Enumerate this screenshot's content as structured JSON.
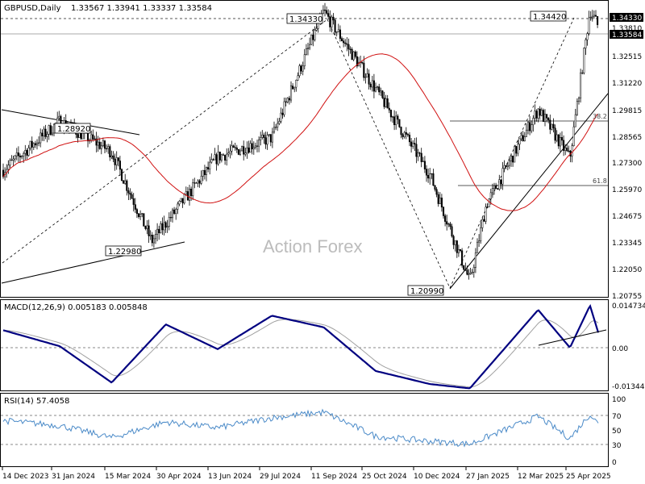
{
  "header": {
    "symbol": "GBPUSD,Daily",
    "ohlc": "1.33567 1.33941 1.33337 1.33584"
  },
  "watermark": "Action Forex",
  "price_axis": {
    "ticks": [
      "1.34330",
      "1.33810",
      "1.32515",
      "1.31220",
      "1.29815",
      "1.28565",
      "1.27300",
      "1.25970",
      "1.24675",
      "1.23345",
      "1.22050",
      "1.20755"
    ],
    "current": "1.33584",
    "marked": "1.34330"
  },
  "price_labels": {
    "high_sep": "1.34330",
    "high_apr": "1.34420",
    "left_high": "1.28920",
    "left_low": "1.22980",
    "low_jan": "1.20990",
    "fib_382": "38.2",
    "fib_618": "61.8"
  },
  "macd": {
    "title": "MACD(12,26,9) 0.005183 0.005848",
    "ticks": [
      "0.014734",
      "0.00",
      "-0.013442"
    ]
  },
  "rsi": {
    "title": "RSI(14) 57.4058",
    "ticks": [
      "100",
      "70",
      "50",
      "30",
      "0"
    ]
  },
  "date_labels": [
    "14 Dec 2023",
    "31 Jan 2024",
    "15 Mar 2024",
    "30 Apr 2024",
    "13 Jun 2024",
    "29 Jul 2024",
    "11 Sep 2024",
    "25 Oct 2024",
    "10 Dec 2024",
    "27 Jan 2025",
    "12 Mar 2025",
    "25 Apr 2025"
  ],
  "colors": {
    "candles": "#000000",
    "ma": "#d01010",
    "macd_line": "#000080",
    "signal_line": "#a0a0a0",
    "rsi_line": "#4a8ac8"
  },
  "chart_data": [
    {
      "type": "line",
      "name": "price",
      "x": [
        "14 Dec 2023",
        "31 Jan 2024",
        "15 Mar 2024",
        "18 Apr 2024",
        "13 Jun 2024",
        "29 Jul 2024",
        "11 Sep 2024",
        "25 Oct 2024",
        "10 Dec 2024",
        "13 Jan 2025",
        "27 Jan 2025",
        "12 Mar 2025",
        "8 Apr 2025",
        "25 Apr 2025",
        "2 May 2025"
      ],
      "values": [
        1.265,
        1.2892,
        1.274,
        1.2298,
        1.2715,
        1.281,
        1.3433,
        1.305,
        1.263,
        1.2099,
        1.248,
        1.295,
        1.271,
        1.3442,
        1.3358
      ],
      "ylim": [
        1.2025,
        1.3485
      ]
    },
    {
      "type": "line",
      "name": "MACD(12,26,9)",
      "x": [
        "14 Dec 2023",
        "31 Jan 2024",
        "15 Mar 2024",
        "30 Apr 2024",
        "13 Jun 2024",
        "29 Jul 2024",
        "11 Sep 2024",
        "25 Oct 2024",
        "10 Dec 2024",
        "13 Jan 2025",
        "12 Mar 2025",
        "8 Apr 2025",
        "25 Apr 2025",
        "2 May 2025"
      ],
      "values": [
        0.006,
        0.0005,
        -0.012,
        0.008,
        -0.0005,
        0.011,
        0.007,
        -0.008,
        -0.0125,
        -0.014,
        0.013,
        0.0,
        0.0145,
        0.0052
      ],
      "ylim": [
        -0.0134,
        0.0147
      ]
    },
    {
      "type": "line",
      "name": "RSI(14)",
      "x": [
        "14 Dec 2023",
        "31 Jan 2024",
        "15 Mar 2024",
        "30 Apr 2024",
        "13 Jun 2024",
        "29 Jul 2024",
        "11 Sep 2024",
        "25 Oct 2024",
        "10 Dec 2024",
        "13 Jan 2025",
        "12 Mar 2025",
        "8 Apr 2025",
        "25 Apr 2025",
        "2 May 2025"
      ],
      "values": [
        62,
        55,
        38,
        60,
        52,
        66,
        74,
        40,
        33,
        29,
        68,
        37,
        71,
        57.4
      ],
      "ylim": [
        0,
        100
      ]
    }
  ]
}
